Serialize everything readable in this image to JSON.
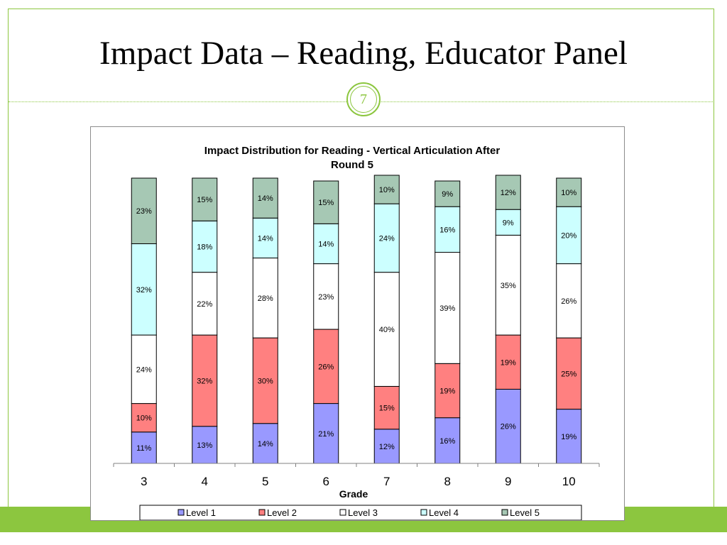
{
  "slide": {
    "title": "Impact Data – Reading, Educator Panel",
    "page_number": "7"
  },
  "colors": {
    "accent": "#8cc63f",
    "level1": "#9999ff",
    "level2": "#ff8080",
    "level3": "#ffffff",
    "level4": "#ccffff",
    "level5": "#a6c8b4"
  },
  "chart_data": {
    "type": "bar",
    "stacked": true,
    "title": "Impact Distribution for Reading - Vertical Articulation After Round 5",
    "xlabel": "Grade",
    "ylabel": "",
    "categories": [
      "3",
      "4",
      "5",
      "6",
      "7",
      "8",
      "9",
      "10"
    ],
    "series": [
      {
        "name": "Level 1",
        "values": [
          11,
          13,
          14,
          21,
          12,
          16,
          26,
          19
        ]
      },
      {
        "name": "Level 2",
        "values": [
          10,
          32,
          30,
          26,
          15,
          19,
          19,
          25
        ]
      },
      {
        "name": "Level 3",
        "values": [
          24,
          22,
          28,
          23,
          40,
          39,
          35,
          26
        ]
      },
      {
        "name": "Level 4",
        "values": [
          32,
          18,
          14,
          14,
          24,
          16,
          9,
          20
        ]
      },
      {
        "name": "Level 5",
        "values": [
          23,
          15,
          14,
          15,
          10,
          9,
          12,
          10
        ]
      }
    ],
    "value_suffix": "%",
    "ylim": [
      0,
      100
    ],
    "grid": false,
    "legend_position": "bottom"
  }
}
